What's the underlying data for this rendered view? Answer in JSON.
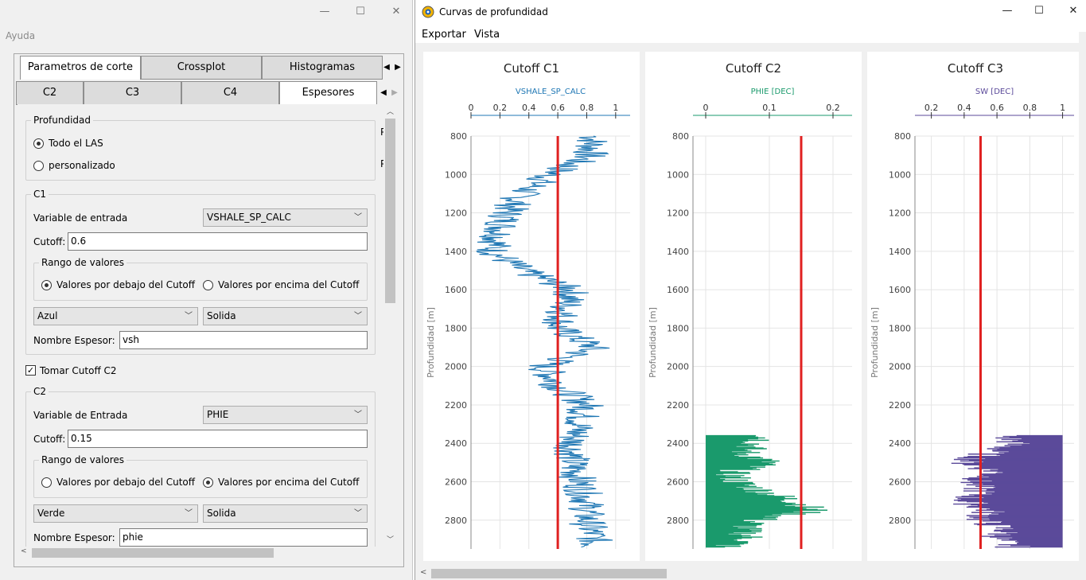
{
  "left_window": {
    "menu_help": "Ayuda",
    "minimize": "—",
    "maximize": "☐",
    "close": "✕",
    "main_tabs": [
      {
        "label": "Parametros de corte",
        "selected": true
      },
      {
        "label": "Crossplot",
        "selected": false
      },
      {
        "label": "Histogramas",
        "selected": false
      }
    ],
    "sub_tabs": [
      {
        "label": "C2",
        "selected": false
      },
      {
        "label": "C3",
        "selected": false
      },
      {
        "label": "C4",
        "selected": false
      },
      {
        "label": "Espesores",
        "selected": true
      }
    ],
    "profundidad": {
      "title": "Profundidad",
      "opt_all": "Todo el LAS",
      "opt_custom": "personalizado",
      "selected": "Todo el LAS",
      "clipped_label_1": "P",
      "clipped_label_2": "P"
    },
    "c1": {
      "title": "C1",
      "variable_label": "Variable de entrada",
      "variable_value": "VSHALE_SP_CALC",
      "cutoff_label": "Cutoff:",
      "cutoff_value": "0.6",
      "range_title": "Rango de valores",
      "range_below": "Valores por debajo del Cutoff",
      "range_above": "Valores por encima del Cutoff",
      "range_selected": "below",
      "color": "Azul",
      "line_style": "Solida",
      "name_label": "Nombre Espesor:",
      "name_value": "vsh"
    },
    "take_c2": {
      "label": "Tomar Cutoff C2",
      "checked": true
    },
    "c2": {
      "title": "C2",
      "variable_label": "Variable de Entrada",
      "variable_value": "PHIE",
      "cutoff_label": "Cutoff:",
      "cutoff_value": "0.15",
      "range_title": "Rango de valores",
      "range_below": "Valores por debajo del Cutoff",
      "range_above": "Valores por encima del Cutoff",
      "range_selected": "above",
      "color": "Verde",
      "line_style": "Solida",
      "name_label": "Nombre Espesor:",
      "name_value": "phie"
    }
  },
  "right_window": {
    "title": "Curvas de profundidad",
    "minimize": "—",
    "maximize": "☐",
    "close": "✕",
    "menus": [
      "Exportar",
      "Vista"
    ]
  },
  "chart_data": [
    {
      "type": "line",
      "title": "Cutoff C1",
      "xlabel": "VSHALE_SP_CALC",
      "ylabel": "Profundidad [m]",
      "x_ticks": [
        "0",
        "0.2",
        "0.4",
        "0.6",
        "0.8",
        "1"
      ],
      "xlim": [
        0,
        1.1
      ],
      "y_ticks": [
        "800",
        "1000",
        "1200",
        "1400",
        "1600",
        "1800",
        "2000",
        "2200",
        "2400",
        "2600",
        "2800"
      ],
      "ylim": [
        800,
        2950
      ],
      "y_inverted": true,
      "cutoff": 0.6,
      "series_color": "#1f77b4",
      "cutoff_color": "#e02020",
      "depth_range": [
        800,
        2940
      ],
      "series": [
        {
          "depth": 800,
          "value": 0.85
        },
        {
          "depth": 900,
          "value": 0.82
        },
        {
          "depth": 1000,
          "value": 0.55
        },
        {
          "depth": 1100,
          "value": 0.35
        },
        {
          "depth": 1200,
          "value": 0.25
        },
        {
          "depth": 1300,
          "value": 0.2
        },
        {
          "depth": 1400,
          "value": 0.15
        },
        {
          "depth": 1500,
          "value": 0.35
        },
        {
          "depth": 1600,
          "value": 0.7
        },
        {
          "depth": 1700,
          "value": 0.65
        },
        {
          "depth": 1800,
          "value": 0.6
        },
        {
          "depth": 1900,
          "value": 0.85
        },
        {
          "depth": 2000,
          "value": 0.5
        },
        {
          "depth": 2100,
          "value": 0.6
        },
        {
          "depth": 2200,
          "value": 0.8
        },
        {
          "depth": 2300,
          "value": 0.75
        },
        {
          "depth": 2400,
          "value": 0.7
        },
        {
          "depth": 2500,
          "value": 0.7
        },
        {
          "depth": 2600,
          "value": 0.75
        },
        {
          "depth": 2700,
          "value": 0.8
        },
        {
          "depth": 2800,
          "value": 0.8
        },
        {
          "depth": 2900,
          "value": 0.85
        }
      ]
    },
    {
      "type": "line",
      "title": "Cutoff C2",
      "xlabel": "PHIE [DEC]",
      "ylabel": "Profundidad [m]",
      "x_ticks": [
        "0",
        "0.1",
        "0.2"
      ],
      "xlim": [
        -0.02,
        0.23
      ],
      "y_ticks": [
        "800",
        "1000",
        "1200",
        "1400",
        "1600",
        "1800",
        "2000",
        "2200",
        "2400",
        "2600",
        "2800"
      ],
      "ylim": [
        800,
        2950
      ],
      "y_inverted": true,
      "cutoff": 0.15,
      "series_color": "#1a9a6c",
      "cutoff_color": "#e02020",
      "depth_range": [
        2360,
        2940
      ],
      "series": [
        {
          "depth": 2360,
          "value": 0.1
        },
        {
          "depth": 2400,
          "value": 0.08
        },
        {
          "depth": 2450,
          "value": 0.06
        },
        {
          "depth": 2500,
          "value": 0.1
        },
        {
          "depth": 2550,
          "value": 0.04
        },
        {
          "depth": 2600,
          "value": 0.05
        },
        {
          "depth": 2650,
          "value": 0.09
        },
        {
          "depth": 2700,
          "value": 0.14
        },
        {
          "depth": 2750,
          "value": 0.17
        },
        {
          "depth": 2800,
          "value": 0.08
        },
        {
          "depth": 2850,
          "value": 0.06
        },
        {
          "depth": 2900,
          "value": 0.07
        },
        {
          "depth": 2940,
          "value": 0.03
        }
      ]
    },
    {
      "type": "line",
      "title": "Cutoff C3",
      "xlabel": "SW [DEC]",
      "ylabel": "Profundidad [m]",
      "x_ticks": [
        "0.2",
        "0.4",
        "0.6",
        "0.8",
        "1"
      ],
      "xlim": [
        0.1,
        1.07
      ],
      "y_ticks": [
        "800",
        "1000",
        "1200",
        "1400",
        "1600",
        "1800",
        "2000",
        "2200",
        "2400",
        "2600",
        "2800"
      ],
      "ylim": [
        800,
        2950
      ],
      "y_inverted": true,
      "cutoff": 0.5,
      "series_color": "#5b4a9a",
      "cutoff_color": "#e02020",
      "depth_range": [
        2360,
        2940
      ],
      "series": [
        {
          "depth": 2360,
          "value": 0.65
        },
        {
          "depth": 2400,
          "value": 0.7
        },
        {
          "depth": 2450,
          "value": 0.55
        },
        {
          "depth": 2500,
          "value": 0.4
        },
        {
          "depth": 2550,
          "value": 0.6
        },
        {
          "depth": 2600,
          "value": 0.45
        },
        {
          "depth": 2650,
          "value": 0.5
        },
        {
          "depth": 2700,
          "value": 0.4
        },
        {
          "depth": 2750,
          "value": 0.55
        },
        {
          "depth": 2800,
          "value": 0.5
        },
        {
          "depth": 2850,
          "value": 0.65
        },
        {
          "depth": 2900,
          "value": 0.6
        },
        {
          "depth": 2940,
          "value": 0.7
        }
      ]
    }
  ]
}
